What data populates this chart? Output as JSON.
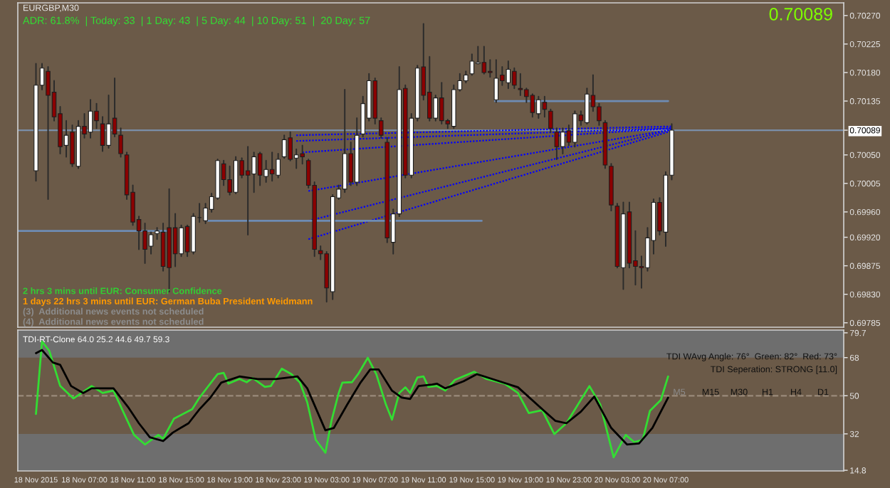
{
  "chart_data": [
    {
      "type": "candlestick",
      "title": "EURGBP,M30",
      "x": [
        "2015-11-18T03:00",
        "2015-11-18T03:30",
        "2015-11-18T04:00",
        "2015-11-18T04:30",
        "2015-11-18T05:00",
        "2015-11-18T05:30",
        "2015-11-18T06:00",
        "2015-11-18T06:30",
        "2015-11-18T07:00",
        "2015-11-18T07:30",
        "2015-11-18T08:00",
        "2015-11-18T08:30",
        "2015-11-18T09:00",
        "2015-11-18T09:30",
        "2015-11-18T10:00",
        "2015-11-18T10:30",
        "2015-11-18T11:00",
        "2015-11-18T11:30",
        "2015-11-18T12:00",
        "2015-11-18T12:30",
        "2015-11-18T13:00",
        "2015-11-18T13:30",
        "2015-11-18T14:00",
        "2015-11-18T14:30",
        "2015-11-18T15:00",
        "2015-11-18T15:30",
        "2015-11-18T16:00",
        "2015-11-18T16:30",
        "2015-11-18T17:00",
        "2015-11-18T17:30",
        "2015-11-18T18:00",
        "2015-11-18T18:30",
        "2015-11-18T19:00",
        "2015-11-18T19:30",
        "2015-11-18T20:00",
        "2015-11-18T20:30",
        "2015-11-18T21:00",
        "2015-11-18T21:30",
        "2015-11-18T22:00",
        "2015-11-18T22:30",
        "2015-11-18T23:00",
        "2015-11-18T23:30",
        "2015-11-19T00:00",
        "2015-11-19T00:30",
        "2015-11-19T01:00",
        "2015-11-19T01:30",
        "2015-11-19T02:00",
        "2015-11-19T02:30",
        "2015-11-19T03:00",
        "2015-11-19T03:30",
        "2015-11-19T04:00",
        "2015-11-19T04:30",
        "2015-11-19T05:00",
        "2015-11-19T05:30",
        "2015-11-19T06:00",
        "2015-11-19T06:30",
        "2015-11-19T07:00",
        "2015-11-19T07:30",
        "2015-11-19T08:00",
        "2015-11-19T08:30",
        "2015-11-19T09:00",
        "2015-11-19T09:30",
        "2015-11-19T10:00",
        "2015-11-19T10:30",
        "2015-11-19T11:00",
        "2015-11-19T11:30",
        "2015-11-19T12:00",
        "2015-11-19T12:30",
        "2015-11-19T13:00",
        "2015-11-19T13:30",
        "2015-11-19T14:00",
        "2015-11-19T14:30",
        "2015-11-19T15:00",
        "2015-11-19T15:30",
        "2015-11-19T16:00",
        "2015-11-19T16:30",
        "2015-11-19T17:00",
        "2015-11-19T17:30",
        "2015-11-19T18:00",
        "2015-11-19T18:30",
        "2015-11-19T19:00",
        "2015-11-19T19:30",
        "2015-11-19T20:00",
        "2015-11-19T20:30",
        "2015-11-19T21:00",
        "2015-11-19T21:30",
        "2015-11-19T22:00",
        "2015-11-19T22:30",
        "2015-11-19T23:00",
        "2015-11-19T23:30",
        "2015-11-20T00:00",
        "2015-11-20T00:30",
        "2015-11-20T01:00",
        "2015-11-20T01:30",
        "2015-11-20T02:00",
        "2015-11-20T02:30",
        "2015-11-20T03:00",
        "2015-11-20T03:30",
        "2015-11-20T04:00",
        "2015-11-20T04:30",
        "2015-11-20T05:00",
        "2015-11-20T05:30",
        "2015-11-20T06:00",
        "2015-11-20T06:30",
        "2015-11-20T07:00",
        "2015-11-20T07:30"
      ],
      "ohlc": [
        [
          0.70025,
          0.70194,
          0.70009,
          0.7016
        ],
        [
          0.7016,
          0.70194,
          0.70153,
          0.70187
        ],
        [
          0.70182,
          0.70189,
          0.6998,
          0.70144
        ],
        [
          0.70149,
          0.70167,
          0.70104,
          0.7011
        ],
        [
          0.70115,
          0.70126,
          0.70052,
          0.70063
        ],
        [
          0.70065,
          0.70104,
          0.70047,
          0.70081
        ],
        [
          0.70086,
          0.70097,
          0.70032,
          0.70036
        ],
        [
          0.70032,
          0.70104,
          0.70029,
          0.70095
        ],
        [
          0.70095,
          0.70115,
          0.70077,
          0.70083
        ],
        [
          0.70086,
          0.70137,
          0.70077,
          0.70119
        ],
        [
          0.70119,
          0.70131,
          0.70092,
          0.70104
        ],
        [
          0.70099,
          0.7011,
          0.70056,
          0.70065
        ],
        [
          0.70065,
          0.70144,
          0.70061,
          0.70099
        ],
        [
          0.70108,
          0.70171,
          0.70079,
          0.70083
        ],
        [
          0.70081,
          0.70092,
          0.70047,
          0.70052
        ],
        [
          0.7005,
          0.70054,
          0.6998,
          0.69987
        ],
        [
          0.69991,
          0.70002,
          0.69939,
          0.69944
        ],
        [
          0.69948,
          0.69953,
          0.69901,
          0.6993
        ],
        [
          0.6993,
          0.69942,
          0.69879,
          0.69901
        ],
        [
          0.69906,
          0.69928,
          0.69894,
          0.69924
        ],
        [
          0.69926,
          0.69935,
          0.69917,
          0.6993
        ],
        [
          0.69928,
          0.69942,
          0.69867,
          0.69874
        ],
        [
          0.69935,
          0.69996,
          0.69834,
          0.69872
        ],
        [
          0.69935,
          0.69957,
          0.69874,
          0.69894
        ],
        [
          0.69894,
          0.69939,
          0.6989,
          0.69935
        ],
        [
          0.69937,
          0.69939,
          0.6989,
          0.69897
        ],
        [
          0.69897,
          0.69957,
          0.69894,
          0.69953
        ],
        [
          0.69951,
          0.69973,
          0.69944,
          0.69951
        ],
        [
          0.69946,
          0.69973,
          0.69942,
          0.69966
        ],
        [
          0.69964,
          0.69989,
          0.6996,
          0.69984
        ],
        [
          0.69982,
          0.70043,
          0.6998,
          0.70041
        ],
        [
          0.70036,
          0.70041,
          0.70002,
          0.70011
        ],
        [
          0.70011,
          0.70032,
          0.69987,
          0.69991
        ],
        [
          0.69991,
          0.70047,
          0.69989,
          0.70041
        ],
        [
          0.70041,
          0.70045,
          0.70014,
          0.70018
        ],
        [
          0.70025,
          0.70063,
          0.69924,
          0.70018
        ],
        [
          0.7002,
          0.70054,
          0.69991,
          0.70047
        ],
        [
          0.70052,
          0.70054,
          0.70002,
          0.70018
        ],
        [
          0.70016,
          0.70041,
          0.70007,
          0.70027
        ],
        [
          0.70027,
          0.70054,
          0.70009,
          0.7002
        ],
        [
          0.70018,
          0.70052,
          0.70014,
          0.70043
        ],
        [
          0.70047,
          0.70081,
          0.70045,
          0.70074
        ],
        [
          0.70077,
          0.70086,
          0.70041,
          0.70043
        ],
        [
          0.70045,
          0.70059,
          0.70029,
          0.7005
        ],
        [
          0.70052,
          0.70065,
          0.70036,
          0.70047
        ],
        [
          0.70041,
          0.70043,
          0.69998,
          0.70002
        ],
        [
          0.70002,
          0.70007,
          0.6989,
          0.69901
        ],
        [
          0.69899,
          0.69906,
          0.69885,
          0.69894
        ],
        [
          0.69894,
          0.69897,
          0.69818,
          0.6984
        ],
        [
          0.69834,
          0.69987,
          0.69822,
          0.69984
        ],
        [
          0.69982,
          0.70002,
          0.6998,
          0.69996
        ],
        [
          0.69996,
          0.70153,
          0.69991,
          0.70052
        ],
        [
          0.70052,
          0.7007,
          0.70002,
          0.70007
        ],
        [
          0.70007,
          0.70108,
          0.70002,
          0.70081
        ],
        [
          0.70083,
          0.70142,
          0.70079,
          0.70131
        ],
        [
          0.70108,
          0.70178,
          0.70104,
          0.70167
        ],
        [
          0.70167,
          0.70171,
          0.70099,
          0.70108
        ],
        [
          0.70104,
          0.70108,
          0.70077,
          0.70081
        ],
        [
          0.7007,
          0.70077,
          0.69912,
          0.69919
        ],
        [
          0.69912,
          0.69964,
          0.69894,
          0.69957
        ],
        [
          0.69957,
          0.70189,
          0.69953,
          0.70153
        ],
        [
          0.70155,
          0.7016,
          0.70014,
          0.70018
        ],
        [
          0.70018,
          0.70115,
          0.70014,
          0.70108
        ],
        [
          0.70108,
          0.70191,
          0.70104,
          0.70187
        ],
        [
          0.70189,
          0.70257,
          0.70137,
          0.70144
        ],
        [
          0.70149,
          0.70205,
          0.70104,
          0.70108
        ],
        [
          0.70108,
          0.70144,
          0.70104,
          0.7014
        ],
        [
          0.7014,
          0.70164,
          0.70099,
          0.70104
        ],
        [
          0.70104,
          0.70106,
          0.70092,
          0.70099
        ],
        [
          0.70095,
          0.7016,
          0.70092,
          0.70153
        ],
        [
          0.70153,
          0.70178,
          0.70151,
          0.70167
        ],
        [
          0.70167,
          0.70182,
          0.70164,
          0.70176
        ],
        [
          0.70178,
          0.70209,
          0.70176,
          0.70198
        ],
        [
          0.70194,
          0.70221,
          0.70194,
          0.70196
        ],
        [
          0.70196,
          0.70221,
          0.70178,
          0.7018
        ],
        [
          0.70182,
          0.702,
          0.70173,
          0.7018
        ],
        [
          0.70137,
          0.702,
          0.70133,
          0.70171
        ],
        [
          0.70176,
          0.70189,
          0.7016,
          0.70167
        ],
        [
          0.70164,
          0.70198,
          0.70155,
          0.70185
        ],
        [
          0.70182,
          0.70187,
          0.70155,
          0.7016
        ],
        [
          0.70155,
          0.70178,
          0.70144,
          0.70153
        ],
        [
          0.70153,
          0.70155,
          0.70133,
          0.70142
        ],
        [
          0.70144,
          0.70146,
          0.7011,
          0.70117
        ],
        [
          0.70115,
          0.70142,
          0.70108,
          0.70137
        ],
        [
          0.70133,
          0.70142,
          0.7011,
          0.70122
        ],
        [
          0.70119,
          0.70122,
          0.70086,
          0.70092
        ],
        [
          0.70086,
          0.70092,
          0.70043,
          0.70063
        ],
        [
          0.70063,
          0.70092,
          0.70052,
          0.70086
        ],
        [
          0.70088,
          0.70097,
          0.70065,
          0.7007
        ],
        [
          0.7007,
          0.70119,
          0.70063,
          0.70115
        ],
        [
          0.70113,
          0.70119,
          0.70097,
          0.70104
        ],
        [
          0.70101,
          0.70155,
          0.70099,
          0.70146
        ],
        [
          0.70144,
          0.70176,
          0.70119,
          0.70126
        ],
        [
          0.70126,
          0.70131,
          0.70097,
          0.70104
        ],
        [
          0.70101,
          0.70104,
          0.70029,
          0.70034
        ],
        [
          0.70032,
          0.70036,
          0.69962,
          0.69971
        ],
        [
          0.69969,
          0.69973,
          0.69872,
          0.69874
        ],
        [
          0.69872,
          0.69975,
          0.69838,
          0.69957
        ],
        [
          0.6996,
          0.69975,
          0.69872,
          0.69879
        ],
        [
          0.69883,
          0.6993,
          0.69845,
          0.69874
        ],
        [
          0.69874,
          0.6989,
          0.6984,
          0.69872
        ],
        [
          0.69872,
          0.69935,
          0.69867,
          0.69919
        ],
        [
          0.69915,
          0.6998,
          0.69894,
          0.69975
        ],
        [
          0.69975,
          0.69982,
          0.69924,
          0.6993
        ],
        [
          0.69928,
          0.70023,
          0.69906,
          0.70018
        ],
        [
          0.70018,
          0.70099,
          0.70011,
          0.70089
        ]
      ],
      "series": [
        {
          "type": "line",
          "color": "#0000ff",
          "line_style": "dotted",
          "x": [
            "2015-11-19T00:30",
            "2015-11-20T07:30"
          ],
          "values": [
            0.70081,
            0.70095
          ]
        },
        {
          "type": "line",
          "color": "#0000ff",
          "line_style": "dotted",
          "x": [
            "2015-11-19T00:30",
            "2015-11-20T07:30"
          ],
          "values": [
            0.70072,
            0.70092
          ]
        },
        {
          "type": "line",
          "color": "#0000ff",
          "line_style": "dotted",
          "x": [
            "2015-11-19T01:00",
            "2015-11-20T07:30"
          ],
          "values": [
            0.70054,
            0.70092
          ]
        },
        {
          "type": "line",
          "color": "#0000ff",
          "line_style": "dotted",
          "x": [
            "2015-11-19T01:30",
            "2015-11-20T07:30"
          ],
          "values": [
            0.69993,
            0.7009
          ]
        },
        {
          "type": "line",
          "color": "#0000ff",
          "line_style": "dotted",
          "x": [
            "2015-11-19T01:30",
            "2015-11-20T07:30"
          ],
          "values": [
            0.69946,
            0.7009
          ]
        },
        {
          "type": "line",
          "color": "#0000ff",
          "line_style": "dotted",
          "x": [
            "2015-11-19T01:30",
            "2015-11-20T07:30"
          ],
          "values": [
            0.69917,
            0.70088
          ]
        },
        {
          "type": "line",
          "color": "#6e8cb4",
          "line_style": "solid",
          "x": [
            "2015-11-18T01:30",
            "2015-11-18T14:00"
          ],
          "values": [
            0.6993,
            0.6993
          ]
        },
        {
          "type": "line",
          "color": "#6e8cb4",
          "line_style": "solid",
          "x": [
            "2015-11-18T17:12",
            "2015-11-19T15:48"
          ],
          "values": [
            0.69946,
            0.69946
          ]
        },
        {
          "type": "line",
          "color": "#6e8cb4",
          "line_style": "solid",
          "x": [
            "2015-11-19T16:54",
            "2015-11-20T07:12"
          ],
          "values": [
            0.70135,
            0.70135
          ]
        }
      ],
      "xlim": [
        "2015-11-18T01:30",
        "2015-11-20T21:42"
      ],
      "ylim": [
        0.69778,
        0.7029
      ],
      "yticks": [
        {
          "value": 0.7027,
          "label": "0.70270"
        },
        0.70225,
        {
          "value": 0.7018,
          "label": "0.70180"
        },
        0.70135,
        0.70089,
        {
          "value": 0.7005,
          "label": "0.70050"
        },
        0.70005,
        {
          "value": 0.6996,
          "label": "0.69960"
        },
        {
          "value": 0.6992,
          "label": "0.69920"
        },
        0.69875,
        {
          "value": 0.6983,
          "label": "0.69830"
        },
        0.69785
      ],
      "tick_labels": "y",
      "ref_lines": [
        {
          "axis": "y",
          "value": 0.70089,
          "color": "#7a8ea8",
          "line_style": "solid"
        }
      ],
      "annotations": [
        "ADR: 61.8%  | Today: 33  | 1 Day: 43  | 5 Day: 44  | 10 Day: 51  |  20 Day: 57",
        "0.70089",
        "2 hrs 3 mins until EUR: Consumer Confidence",
        "1 days 22 hrs 3 mins until EUR: German Buba President Weidmann",
        "(3)  Additional news events not scheduled",
        "(4)  Additional news events not scheduled"
      ]
    },
    {
      "type": "line",
      "title": "TDI-RT-Clone 64.0 25.2 44.6 49.7 59.3",
      "series": [
        {
          "color": "#33dd33",
          "x": [
            "2015-11-18T03:00",
            "2015-11-18T03:30",
            "2015-11-18T04:06",
            "2015-11-18T05:00",
            "2015-11-18T06:06",
            "2015-11-18T07:36",
            "2015-11-18T08:30",
            "2015-11-18T09:24",
            "2015-11-18T10:12",
            "2015-11-18T11:06",
            "2015-11-18T12:00",
            "2015-11-18T13:06",
            "2015-11-18T13:30",
            "2015-11-18T14:24",
            "2015-11-18T15:54",
            "2015-11-18T16:30",
            "2015-11-18T18:00",
            "2015-11-18T18:30",
            "2015-11-18T18:54",
            "2015-11-18T19:48",
            "2015-11-18T20:24",
            "2015-11-18T20:54",
            "2015-11-18T21:54",
            "2015-11-18T22:24",
            "2015-11-18T23:18",
            "2015-11-19T00:06",
            "2015-11-19T00:48",
            "2015-11-19T01:24",
            "2015-11-19T02:06",
            "2015-11-19T02:54",
            "2015-11-19T03:24",
            "2015-11-19T04:00",
            "2015-11-19T04:18",
            "2015-11-19T05:06",
            "2015-11-19T05:36",
            "2015-11-19T06:24",
            "2015-11-19T07:06",
            "2015-11-19T07:54",
            "2015-11-19T08:24",
            "2015-11-19T09:00",
            "2015-11-19T09:30",
            "2015-11-19T09:54",
            "2015-11-19T10:30",
            "2015-11-19T11:00",
            "2015-11-19T11:24",
            "2015-11-19T12:06",
            "2015-11-19T12:48",
            "2015-11-19T13:36",
            "2015-11-19T15:12",
            "2015-11-19T16:12",
            "2015-11-19T17:42",
            "2015-11-19T18:48",
            "2015-11-19T19:42",
            "2015-11-19T20:48",
            "2015-11-19T21:48",
            "2015-11-19T22:48",
            "2015-11-20T00:42",
            "2015-11-20T01:36",
            "2015-11-20T02:42",
            "2015-11-20T03:42",
            "2015-11-20T04:24",
            "2015-11-20T05:06",
            "2015-11-20T05:42",
            "2015-11-20T06:36",
            "2015-11-20T07:12"
          ],
          "values": [
            41.4,
            75.6,
            71.2,
            54.6,
            48.7,
            54.6,
            51.3,
            52.4,
            42.5,
            31.5,
            27.0,
            31.5,
            29.7,
            39.2,
            43.6,
            49.1,
            60.2,
            60.8,
            55.7,
            57.9,
            56.4,
            58.4,
            54.2,
            54.6,
            62.8,
            60.2,
            56.2,
            46.9,
            29.2,
            23.1,
            38.1,
            51.3,
            56.2,
            56.4,
            60.2,
            67.9,
            60.2,
            45.8,
            38.7,
            51.3,
            54.0,
            51.3,
            58.6,
            59.1,
            54.2,
            54.6,
            52.4,
            57.5,
            61.3,
            57.9,
            55.7,
            51.3,
            41.8,
            43.2,
            31.9,
            37.0,
            54.6,
            45.8,
            20.9,
            31.5,
            28.1,
            29.2,
            42.9,
            48.0,
            59.1
          ]
        },
        {
          "color": "#000000",
          "x": [
            "2015-11-18T03:00",
            "2015-11-18T03:30",
            "2015-11-18T04:24",
            "2015-11-18T05:00",
            "2015-11-18T05:54",
            "2015-11-18T06:54",
            "2015-11-18T07:36",
            "2015-11-18T09:24",
            "2015-11-18T10:36",
            "2015-11-18T11:30",
            "2015-11-18T12:24",
            "2015-11-18T13:30",
            "2015-11-18T14:18",
            "2015-11-18T15:36",
            "2015-11-18T16:30",
            "2015-11-18T17:24",
            "2015-11-18T18:18",
            "2015-11-18T19:48",
            "2015-11-18T21:18",
            "2015-11-18T22:48",
            "2015-11-19T00:36",
            "2015-11-19T01:24",
            "2015-11-19T02:54",
            "2015-11-19T03:36",
            "2015-11-19T04:42",
            "2015-11-19T05:48",
            "2015-11-19T06:36",
            "2015-11-19T07:18",
            "2015-11-19T08:24",
            "2015-11-19T09:12",
            "2015-11-19T09:54",
            "2015-11-19T10:36",
            "2015-11-19T11:42",
            "2015-11-19T12:06",
            "2015-11-19T12:48",
            "2015-11-19T14:18",
            "2015-11-19T15:24",
            "2015-11-19T16:54",
            "2015-11-19T18:48",
            "2015-11-19T20:36",
            "2015-11-19T21:54",
            "2015-11-19T22:48",
            "2015-11-20T00:00",
            "2015-11-20T01:06",
            "2015-11-20T02:30",
            "2015-11-20T03:48",
            "2015-11-20T04:48",
            "2015-11-20T05:54",
            "2015-11-20T07:12"
          ],
          "values": [
            70.1,
            71.6,
            65.7,
            64.6,
            54.6,
            51.3,
            53.5,
            53.5,
            44.7,
            37.0,
            30.4,
            28.6,
            32.6,
            37.0,
            43.6,
            49.1,
            56.2,
            59.1,
            57.9,
            57.9,
            59.1,
            53.5,
            33.7,
            34.8,
            45.8,
            56.2,
            62.4,
            62.4,
            52.4,
            49.1,
            48.5,
            54.6,
            55.3,
            55.7,
            53.5,
            56.8,
            60.2,
            57.5,
            54.0,
            44.7,
            38.1,
            37.0,
            42.5,
            49.6,
            34.8,
            27.0,
            27.5,
            34.8,
            49.1
          ]
        }
      ],
      "xlim": [
        "2015-11-18T01:30",
        "2015-11-20T21:42"
      ],
      "ylim": [
        14.5,
        81
      ],
      "xticks": [
        {
          "value": "2015-11-18T03:00",
          "label": "18 Nov 2015"
        },
        {
          "value": "2015-11-18T07:00",
          "label": "18 Nov 07:00"
        },
        {
          "value": "2015-11-18T11:00",
          "label": "18 Nov 11:00"
        },
        {
          "value": "2015-11-18T15:00",
          "label": "18 Nov 15:00"
        },
        {
          "value": "2015-11-18T19:00",
          "label": "18 Nov 19:00"
        },
        {
          "value": "2015-11-18T23:00",
          "label": "18 Nov 23:00"
        },
        {
          "value": "2015-11-19T03:00",
          "label": "19 Nov 03:00"
        },
        {
          "value": "2015-11-19T07:00",
          "label": "19 Nov 07:00"
        },
        {
          "value": "2015-11-19T11:00",
          "label": "19 Nov 11:00"
        },
        {
          "value": "2015-11-19T15:00",
          "label": "19 Nov 15:00"
        },
        {
          "value": "2015-11-19T19:00",
          "label": "19 Nov 19:00"
        },
        {
          "value": "2015-11-19T23:00",
          "label": "19 Nov 23:00"
        },
        {
          "value": "2015-11-20T03:00",
          "label": "20 Nov 03:00"
        },
        {
          "value": "2015-11-20T07:00",
          "label": "20 Nov 07:00"
        }
      ],
      "yticks": [
        79.7,
        68,
        50,
        32,
        14.8
      ],
      "bands": [
        {
          "axis": "y",
          "from": 68,
          "to": 81,
          "color": "#6e6e6e"
        },
        {
          "axis": "y",
          "from": 14.5,
          "to": 32,
          "color": "#6e6e6e"
        }
      ],
      "ref_lines": [
        {
          "axis": "y",
          "value": 50,
          "color": "#9a8a7a",
          "line_style": "dashed"
        }
      ],
      "annotations": [
        "TDI WAvg Angle: 76°  Green: 82°  Red: 73°",
        "TDI Seperation: STRONG [11.0]",
        "M5",
        "M15",
        "M30",
        "H1",
        "H4",
        "D1"
      ]
    }
  ]
}
